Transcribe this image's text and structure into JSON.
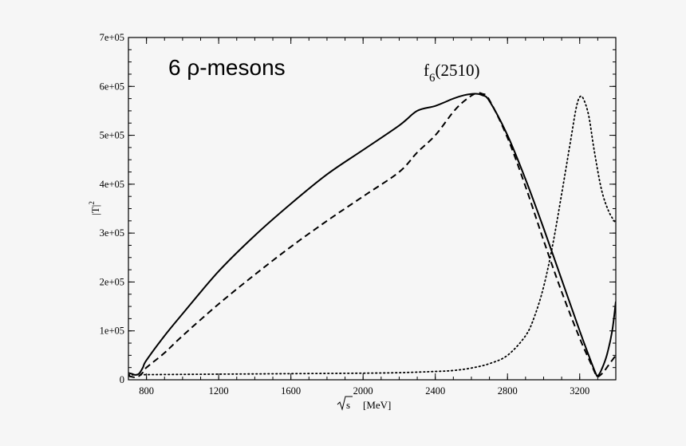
{
  "chart_data": {
    "type": "line",
    "title": "",
    "xlabel_sqrt": "s",
    "xlabel_unit": "[MeV]",
    "ylabel_base": "|T|",
    "ylabel_sup": "2",
    "xlim": [
      700,
      3400
    ],
    "ylim": [
      0,
      700000
    ],
    "xticks": [
      800,
      1200,
      1600,
      2000,
      2400,
      2800,
      3200
    ],
    "xtick_labels": [
      "800",
      "1200",
      "1600",
      "2000",
      "2400",
      "2800",
      "3200"
    ],
    "yticks": [
      0,
      100000,
      200000,
      300000,
      400000,
      500000,
      600000,
      700000
    ],
    "ytick_labels": [
      "0",
      "1e+05",
      "2e+05",
      "3e+05",
      "4e+05",
      "5e+05",
      "6e+05",
      "7e+05"
    ],
    "x_minor_step": 100,
    "y_minor_step": 25000,
    "annotations": {
      "panel_label": "6 ρ-mesons",
      "peak_label_base": "f",
      "peak_label_sub": "6",
      "peak_label_rest": "(2510)"
    },
    "series": [
      {
        "name": "solid",
        "style": "solid",
        "color": "#000000",
        "x": [
          700,
          720,
          740,
          760,
          780,
          800,
          900,
          1000,
          1200,
          1400,
          1600,
          1800,
          2000,
          2200,
          2300,
          2400,
          2500,
          2560,
          2620,
          2660,
          2700,
          2800,
          2900,
          3000,
          3100,
          3200,
          3260,
          3290,
          3300,
          3320,
          3350,
          3380,
          3400
        ],
        "y": [
          14000,
          12000,
          10000,
          13000,
          25000,
          40000,
          90000,
          135000,
          222000,
          295000,
          360000,
          420000,
          470000,
          520000,
          550000,
          560000,
          575000,
          582000,
          585000,
          582000,
          570000,
          500000,
          410000,
          310000,
          205000,
          100000,
          40000,
          12000,
          8000,
          20000,
          50000,
          100000,
          160000
        ]
      },
      {
        "name": "dashed",
        "style": "dashed",
        "color": "#000000",
        "x": [
          700,
          720,
          740,
          760,
          780,
          800,
          900,
          1000,
          1200,
          1400,
          1600,
          1800,
          2000,
          2200,
          2300,
          2400,
          2500,
          2560,
          2620,
          2660,
          2700,
          2800,
          2900,
          3000,
          3100,
          3200,
          3260,
          3290,
          3300,
          3330,
          3360,
          3400
        ],
        "y": [
          8000,
          6000,
          5000,
          8000,
          15000,
          25000,
          55000,
          90000,
          155000,
          215000,
          272000,
          325000,
          375000,
          425000,
          465000,
          500000,
          548000,
          570000,
          585000,
          585000,
          572000,
          495000,
          395000,
          285000,
          180000,
          85000,
          35000,
          10000,
          6000,
          15000,
          30000,
          50000
        ]
      },
      {
        "name": "dotted",
        "style": "dotted",
        "color": "#000000",
        "x": [
          700,
          800,
          1000,
          1200,
          1400,
          1600,
          1800,
          2000,
          2200,
          2400,
          2500,
          2600,
          2700,
          2800,
          2900,
          2950,
          3000,
          3050,
          3100,
          3150,
          3180,
          3200,
          3220,
          3250,
          3280,
          3320,
          3360,
          3400
        ],
        "y": [
          10000,
          10500,
          11000,
          11500,
          12000,
          12500,
          13000,
          13500,
          14500,
          17000,
          19000,
          24000,
          33000,
          50000,
          90000,
          130000,
          190000,
          275000,
          380000,
          490000,
          555000,
          578000,
          575000,
          540000,
          470000,
          390000,
          345000,
          320000
        ]
      }
    ]
  }
}
